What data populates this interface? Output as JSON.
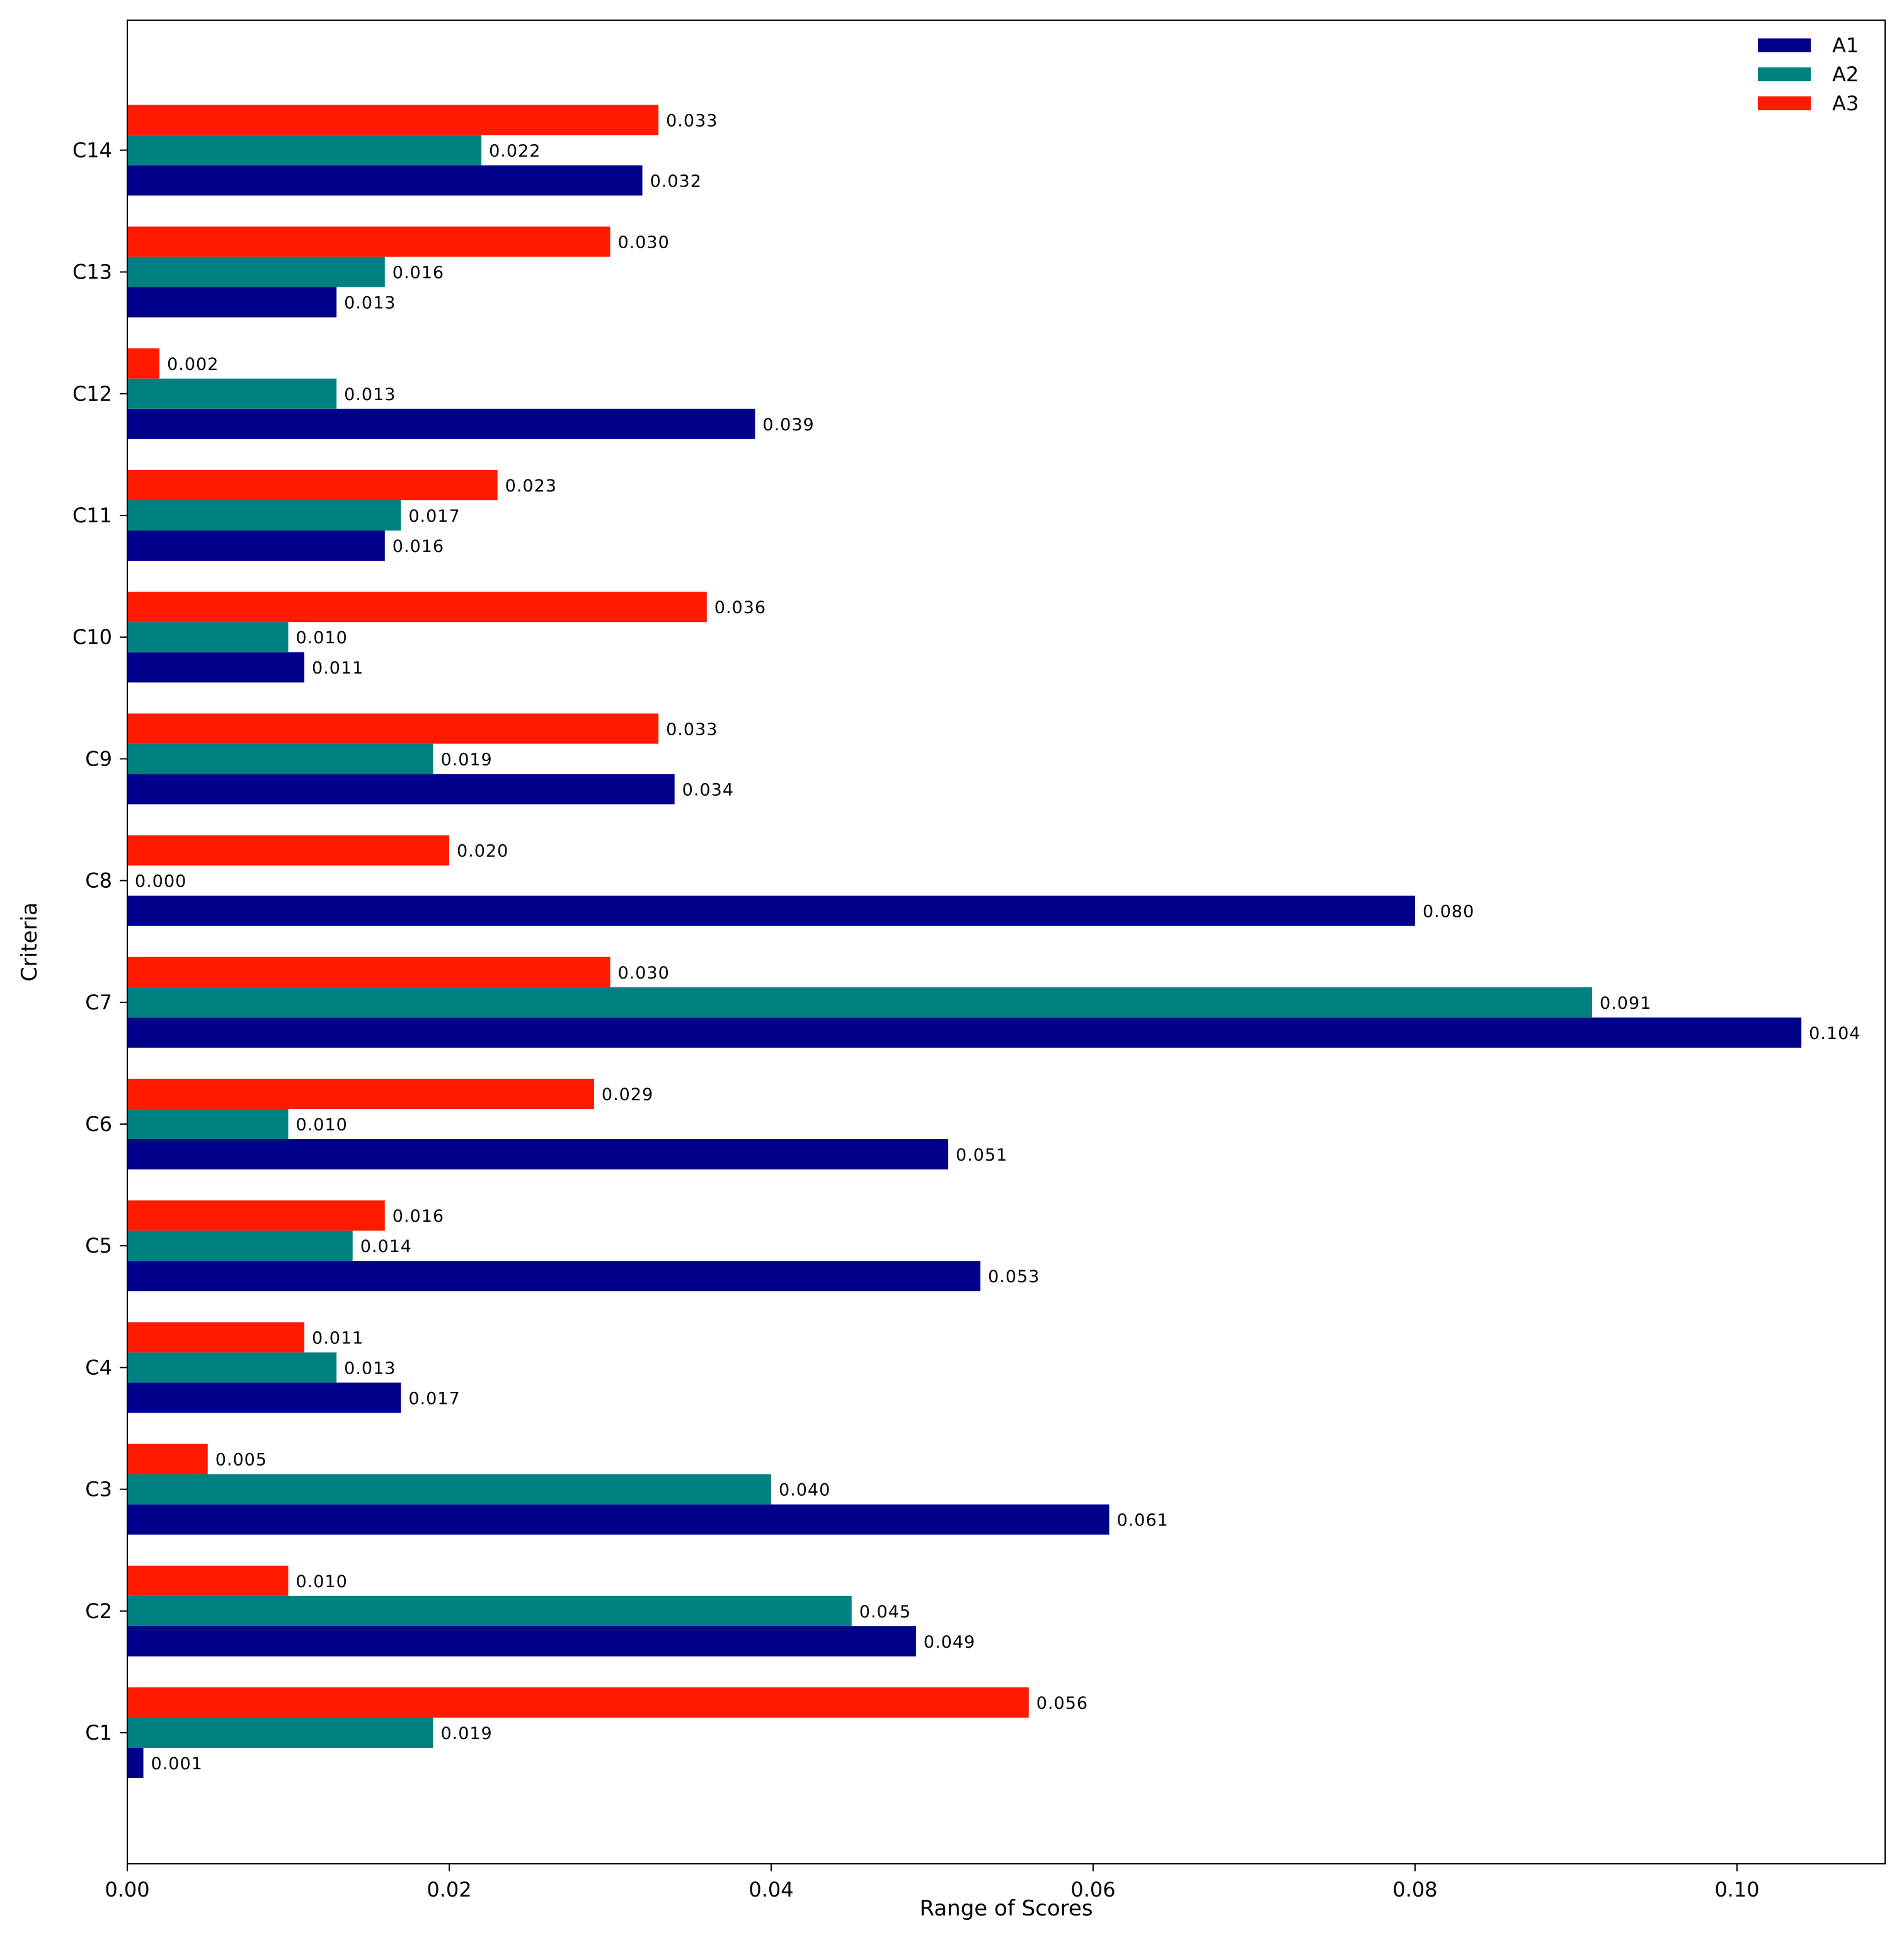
{
  "chart_data": {
    "type": "bar",
    "orientation": "horizontal",
    "title": "",
    "xlabel": "Range of Scores",
    "ylabel": "Criteria",
    "xlim": [
      0,
      0.1092
    ],
    "xticks": [
      0.0,
      0.02,
      0.04,
      0.06,
      0.08,
      0.1
    ],
    "xtick_labels": [
      "0.00",
      "0.02",
      "0.04",
      "0.06",
      "0.08",
      "0.10"
    ],
    "categories": [
      "C1",
      "C2",
      "C3",
      "C4",
      "C5",
      "C6",
      "C7",
      "C8",
      "C9",
      "C10",
      "C11",
      "C12",
      "C13",
      "C14"
    ],
    "legend_position": "top-right",
    "grid": false,
    "series": [
      {
        "name": "A1",
        "color": "#00008b",
        "values": [
          0.001,
          0.049,
          0.061,
          0.017,
          0.053,
          0.051,
          0.104,
          0.08,
          0.034,
          0.011,
          0.016,
          0.039,
          0.013,
          0.032
        ],
        "labels": [
          "0.001",
          "0.049",
          "0.061",
          "0.017",
          "0.053",
          "0.051",
          "0.104",
          "0.080",
          "0.034",
          "0.011",
          "0.016",
          "0.039",
          "0.013",
          "0.032"
        ]
      },
      {
        "name": "A2",
        "color": "#008080",
        "values": [
          0.019,
          0.045,
          0.04,
          0.013,
          0.014,
          0.01,
          0.091,
          0.0,
          0.019,
          0.01,
          0.017,
          0.013,
          0.016,
          0.022
        ],
        "labels": [
          "0.019",
          "0.045",
          "0.040",
          "0.013",
          "0.014",
          "0.010",
          "0.091",
          "0.000",
          "0.019",
          "0.010",
          "0.017",
          "0.013",
          "0.016",
          "0.022"
        ]
      },
      {
        "name": "A3",
        "color": "#ff1a00",
        "values": [
          0.056,
          0.01,
          0.005,
          0.011,
          0.016,
          0.029,
          0.03,
          0.02,
          0.033,
          0.036,
          0.023,
          0.002,
          0.03,
          0.033
        ],
        "labels": [
          "0.056",
          "0.010",
          "0.005",
          "0.011",
          "0.016",
          "0.029",
          "0.030",
          "0.020",
          "0.033",
          "0.036",
          "0.023",
          "0.002",
          "0.030",
          "0.033"
        ]
      }
    ]
  }
}
